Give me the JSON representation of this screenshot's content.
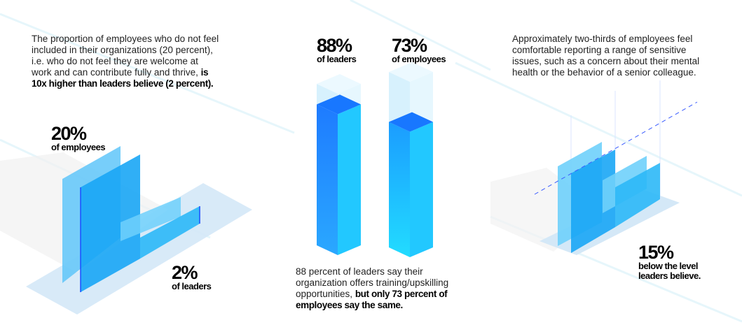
{
  "left_panel": {
    "text_regular": "The proportion of employees who do not feel included in their organizations (20 percent), i.e. who do not feel they are welcome at work and can contribute fully and thrive, ",
    "text_bold": "is 10x higher than leaders believe (2 percent).",
    "employees_value": "20%",
    "employees_label": "of employees",
    "leaders_value": "2%",
    "leaders_label": "of leaders"
  },
  "middle_panel": {
    "leaders_value": "88%",
    "leaders_label": "of leaders",
    "employees_value": "73%",
    "employees_label": "of employees",
    "text_regular": "88 percent of leaders say their organization offers training/upskilling opportunities, ",
    "text_bold": "but only 73 percent of employees say the same."
  },
  "right_panel": {
    "text": "Approximately two-thirds of employees feel comfortable reporting a range of sensitive issues, such as a concern about their mental health or the behavior of a senior colleague.",
    "value": "15%",
    "label_line1": "below the level",
    "label_line2": "leaders believe."
  },
  "colors": {
    "bar_dark": "#1e7bff",
    "bar_light": "#22d3ff",
    "ghost": "#bfe9fb",
    "floor": "#d4e8f7"
  },
  "chart_data": [
    {
      "type": "bar",
      "title": "Not feeling included",
      "categories": [
        "employees",
        "leaders"
      ],
      "values": [
        20,
        2
      ],
      "ylim": [
        0,
        100
      ]
    },
    {
      "type": "bar",
      "title": "Organization offers training/upskilling",
      "categories": [
        "leaders",
        "employees"
      ],
      "values": [
        88,
        73
      ],
      "ylim": [
        0,
        100
      ]
    },
    {
      "type": "bar",
      "title": "Comfortable reporting sensitive issues",
      "categories": [
        "leaders believe",
        "employees"
      ],
      "difference": -15
    }
  ]
}
